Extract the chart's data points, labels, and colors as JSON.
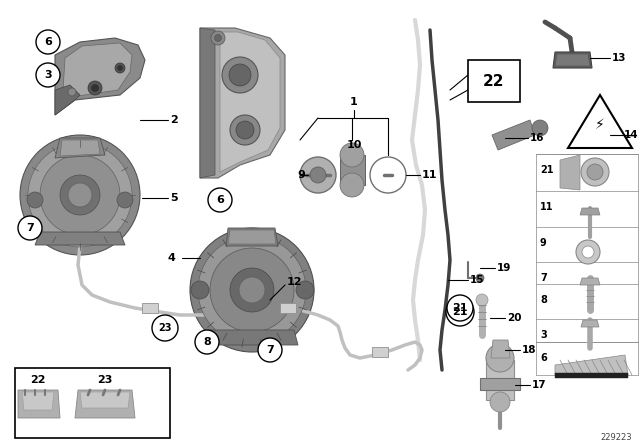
{
  "diagram_id": "229223",
  "bg_color": "#ffffff",
  "fig_width": 6.4,
  "fig_height": 4.48,
  "dpi": 100,
  "gray1": "#909090",
  "gray2": "#b0b0b0",
  "gray3": "#d0d0d0",
  "gray4": "#707070",
  "gray5": "#c0c0c0",
  "black": "#000000",
  "white": "#ffffff"
}
